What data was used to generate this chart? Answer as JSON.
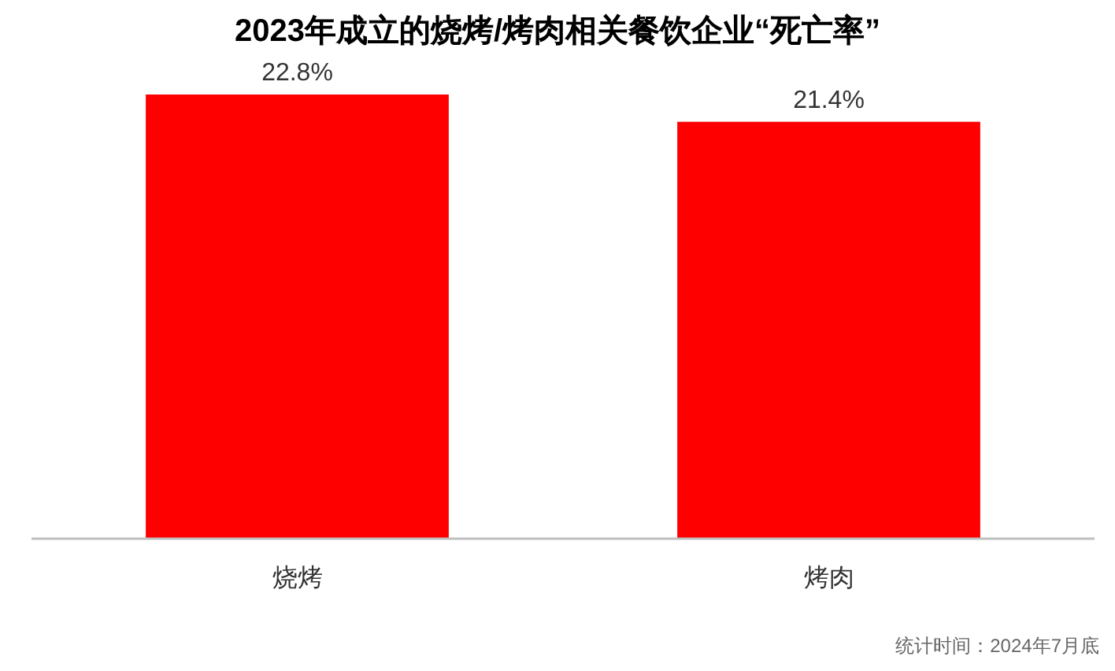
{
  "chart_data": {
    "type": "bar",
    "title": "2023年成立的烧烤/烤肉相关餐饮企业“死亡率”",
    "categories": [
      "烧烤",
      "烤肉"
    ],
    "values": [
      22.8,
      21.4
    ],
    "value_labels": [
      "22.8%",
      "21.4%"
    ],
    "color": "#ff0000",
    "annotations": [
      "统计时间：2024年7月底"
    ]
  }
}
